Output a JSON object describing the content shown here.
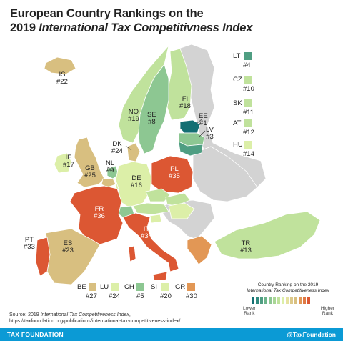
{
  "title": {
    "line1": "European Country Rankings on the",
    "line2_prefix": "2019 ",
    "line2_italic": "International Tax Competitivness Index"
  },
  "colors": {
    "rank_1": "#136f73",
    "rank_4": "#4f9e82",
    "rank_low_green": "#8dc792",
    "rank_light_green": "#c0e29c",
    "rank_pale": "#dcefa8",
    "rank_mid_tan": "#d8bf80",
    "rank_orange": "#e29755",
    "rank_high": "#dc5733",
    "no_data": "#d3d3d3",
    "footer": "#0b9ad5"
  },
  "countries": [
    {
      "code": "IS",
      "rank": "#22"
    },
    {
      "code": "NO",
      "rank": "#19"
    },
    {
      "code": "SE",
      "rank": "#8"
    },
    {
      "code": "FI",
      "rank": "#18"
    },
    {
      "code": "EE",
      "rank": "#1"
    },
    {
      "code": "LV",
      "rank": "#3"
    },
    {
      "code": "DK",
      "rank": "#24"
    },
    {
      "code": "IE",
      "rank": "#17"
    },
    {
      "code": "GB",
      "rank": "#25"
    },
    {
      "code": "NL",
      "rank": "#9"
    },
    {
      "code": "DE",
      "rank": "#16"
    },
    {
      "code": "PL",
      "rank": "#35"
    },
    {
      "code": "FR",
      "rank": "#36"
    },
    {
      "code": "IT",
      "rank": "#34"
    },
    {
      "code": "ES",
      "rank": "#23"
    },
    {
      "code": "PT",
      "rank": "#33"
    },
    {
      "code": "TR",
      "rank": "#13"
    }
  ],
  "side_list": [
    {
      "code": "LT",
      "rank": "#4",
      "color": "#4f9e82"
    },
    {
      "code": "CZ",
      "rank": "#10",
      "color": "#c0e29c"
    },
    {
      "code": "SK",
      "rank": "#11",
      "color": "#c0e29c"
    },
    {
      "code": "AT",
      "rank": "#12",
      "color": "#c0e29c"
    },
    {
      "code": "HU",
      "rank": "#14",
      "color": "#dcefa8"
    }
  ],
  "bottom_list": [
    {
      "code": "BE",
      "rank": "#27",
      "color": "#d8bf80"
    },
    {
      "code": "LU",
      "rank": "#24",
      "color": "#dcefa8"
    },
    {
      "code": "CH",
      "rank": "#5",
      "color": "#8dc792"
    },
    {
      "code": "SI",
      "rank": "#20",
      "color": "#dcefa8"
    },
    {
      "code": "GR",
      "rank": "#30",
      "color": "#e29755"
    }
  ],
  "legend": {
    "title_line1": "Country Ranking on the 2019",
    "title_line2": "International Tax Competitiveness Index",
    "lower_line1": "Lower",
    "lower_line2": "Rank",
    "higher_line1": "Higher",
    "higher_line2": "Rank",
    "scale_colors": [
      "#136f73",
      "#2f8a7e",
      "#4f9e82",
      "#6cb48a",
      "#8dc792",
      "#a9d696",
      "#c0e29c",
      "#dcefa8",
      "#e6e2a0",
      "#ddc98a",
      "#d8bf80",
      "#e29755",
      "#df7a45",
      "#dc5733"
    ]
  },
  "source": {
    "line1_prefix": "Source: 2019 ",
    "line1_italic": "International Tax Competitiveness Index",
    "line1_suffix": ",",
    "line2": "https://taxfoundation.org/publications/international-tax-competitiveness-index/"
  },
  "footer": {
    "left": "TAX FOUNDATION",
    "right": "@TaxFoundation"
  }
}
